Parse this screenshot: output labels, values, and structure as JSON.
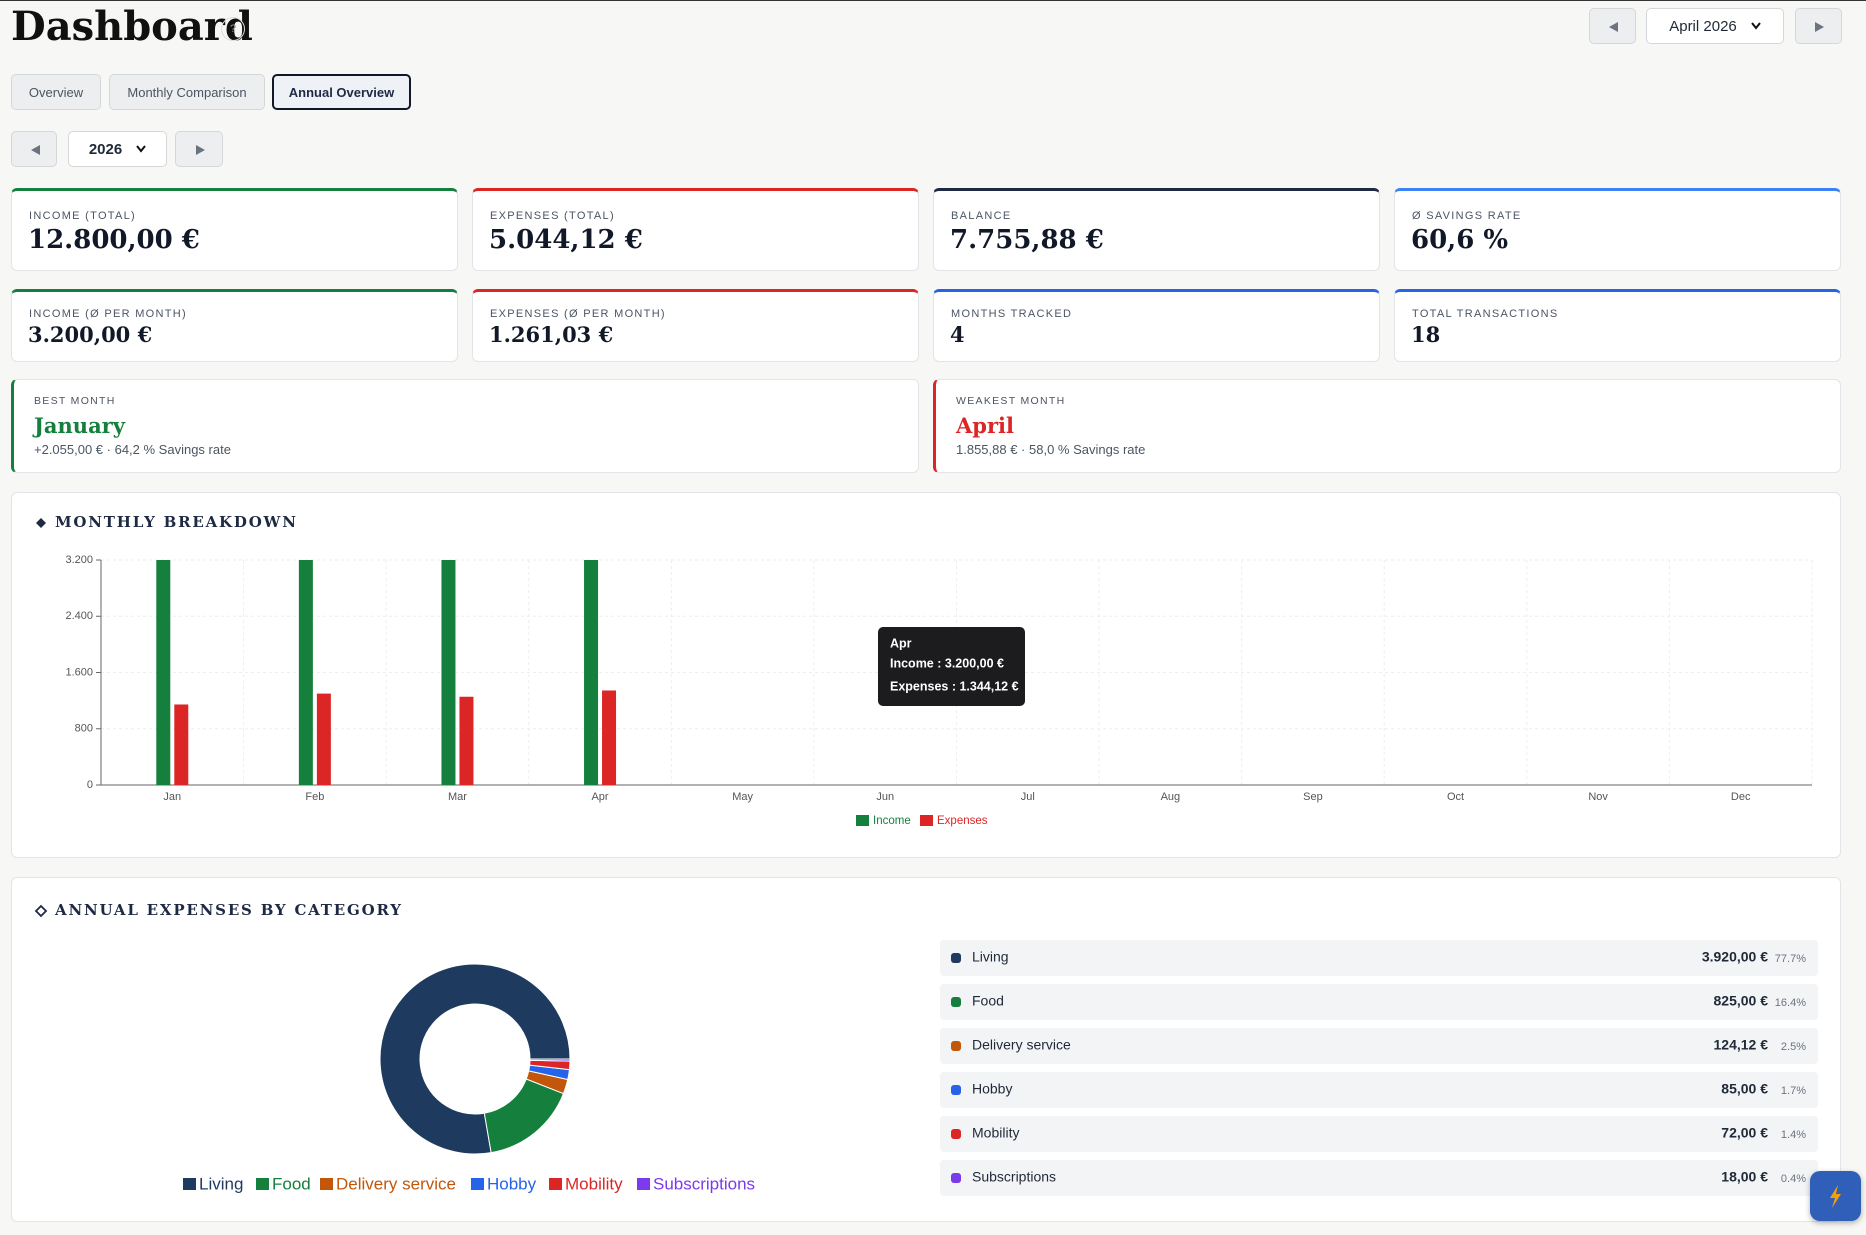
{
  "header": {
    "title": "Dashboard",
    "help": "?",
    "month": "April 2026"
  },
  "tabs": [
    "Overview",
    "Monthly Comparison",
    "Annual Overview"
  ],
  "year_nav": {
    "year": "2026"
  },
  "kpis": [
    {
      "label": "INCOME (TOTAL)",
      "value": "12.800,00 €",
      "color": "#15803d"
    },
    {
      "label": "EXPENSES (TOTAL)",
      "value": "5.044,12 €",
      "color": "#dc2626"
    },
    {
      "label": "BALANCE",
      "value": "7.755,88 €",
      "color": "#1e2a44"
    },
    {
      "label": "Ø SAVINGS RATE",
      "value": "60,6 %",
      "color": "#3b82f6"
    },
    {
      "label": "INCOME (Ø PER MONTH)",
      "value": "3.200,00 €",
      "color": "#15803d"
    },
    {
      "label": "EXPENSES (Ø PER MONTH)",
      "value": "1.261,03 €",
      "color": "#dc2626"
    },
    {
      "label": "MONTHS TRACKED",
      "value": "4",
      "color": "#2563eb"
    },
    {
      "label": "TOTAL TRANSACTIONS",
      "value": "18",
      "color": "#2563eb"
    }
  ],
  "highlights": [
    {
      "label": "BEST MONTH",
      "month": "January",
      "detail": "+2.055,00 € · 64,2 % Savings rate",
      "color": "#15803d"
    },
    {
      "label": "WEAKEST MONTH",
      "month": "April",
      "detail": "1.855,88 € · 58,0 % Savings rate",
      "color": "#dc2626"
    }
  ],
  "monthly_breakdown": {
    "type": "bar",
    "title": "MONTHLY BREAKDOWN",
    "categories": [
      "Jan",
      "Feb",
      "Mar",
      "Apr",
      "May",
      "Jun",
      "Jul",
      "Aug",
      "Sep",
      "Oct",
      "Nov",
      "Dec"
    ],
    "series": [
      {
        "name": "Income",
        "color": "#15803d",
        "values": [
          3200,
          3200,
          3200,
          3200,
          null,
          null,
          null,
          null,
          null,
          null,
          null,
          null
        ]
      },
      {
        "name": "Expenses",
        "color": "#dc2626",
        "values": [
          1145,
          1300,
          1255,
          1344.12,
          null,
          null,
          null,
          null,
          null,
          null,
          null,
          null
        ]
      }
    ],
    "ylim": [
      0,
      3200
    ],
    "yticks": [
      0,
      800,
      {
        "value": 1600,
        "label": "1.600"
      },
      {
        "value": 2400,
        "label": "2.400"
      },
      {
        "value": 3200,
        "label": "3.200"
      }
    ],
    "grid": true,
    "tooltip": {
      "title": "Apr",
      "lines": [
        "Income : 3.200,00 €",
        "Expenses : 1.344,12 €"
      ]
    }
  },
  "expenses_by_category": {
    "type": "pie",
    "title": "ANNUAL EXPENSES BY CATEGORY",
    "categories": [
      "Living",
      "Food",
      "Delivery service",
      "Hobby",
      "Mobility",
      "Subscriptions"
    ],
    "values": [
      3920,
      825,
      124.12,
      85,
      72,
      18
    ],
    "value_labels": [
      "3.920,00 €",
      "825,00 €",
      "124,12 €",
      "85,00 €",
      "72,00 €",
      "18,00 €"
    ],
    "share_labels": [
      "77.7%",
      "16.4%",
      "2.5%",
      "1.7%",
      "1.4%",
      "0.4%"
    ],
    "colors": [
      "#1e3a5f",
      "#15803d",
      "#c2570c",
      "#2563eb",
      "#dc2626",
      "#7c3aed"
    ]
  }
}
